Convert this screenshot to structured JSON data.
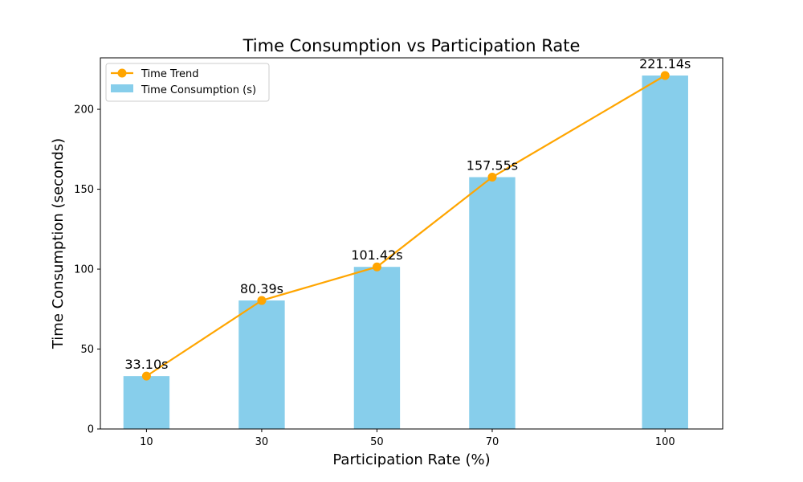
{
  "chart_data": {
    "type": "bar",
    "title": "Time Consumption vs Participation Rate",
    "xlabel": "Participation Rate (%)",
    "ylabel": "Time Consumption (seconds)",
    "x": [
      10,
      30,
      50,
      70,
      100
    ],
    "x_tick_labels": [
      "10",
      "30",
      "50",
      "70",
      "100"
    ],
    "y_ticks": [
      0,
      50,
      100,
      150,
      200
    ],
    "y_tick_labels": [
      "0",
      "50",
      "100",
      "150",
      "200"
    ],
    "xlim": [
      2,
      110
    ],
    "ylim": [
      0,
      232.2
    ],
    "bar_width": 8,
    "grid": false,
    "legend_position": "top-left",
    "series": [
      {
        "name": "Time Consumption (s)",
        "type": "bar",
        "color": "#87CEEB",
        "values": [
          33.1,
          80.39,
          101.42,
          157.55,
          221.14
        ],
        "labels": [
          "33.10s",
          "80.39s",
          "101.42s",
          "157.55s",
          "221.14s"
        ]
      },
      {
        "name": "Time Trend",
        "type": "line",
        "color": "#FFA500",
        "marker": "circle",
        "values": [
          33.1,
          80.39,
          101.42,
          157.55,
          221.14
        ]
      }
    ],
    "legend": [
      "Time Trend",
      "Time Consumption (s)"
    ]
  }
}
